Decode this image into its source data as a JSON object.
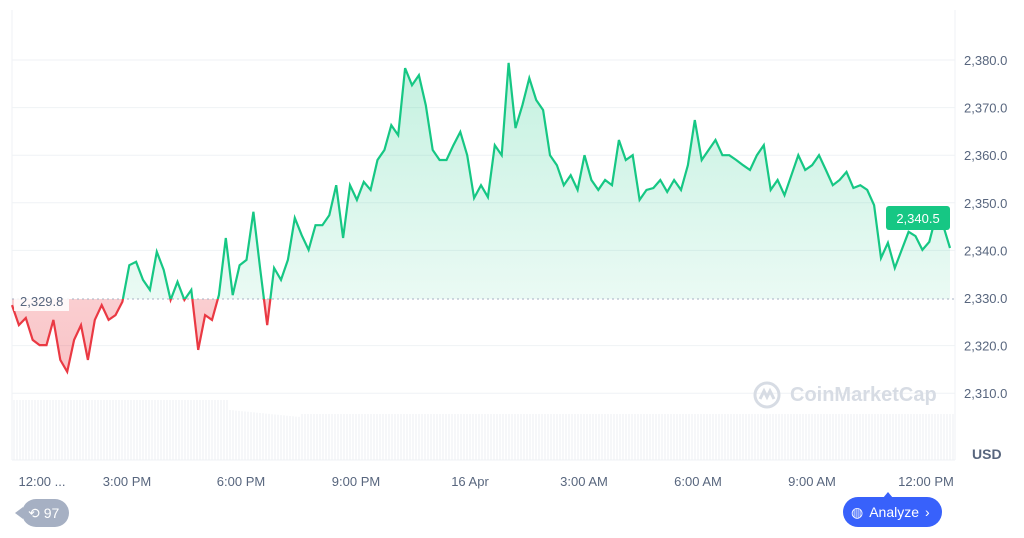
{
  "chart_data": {
    "type": "area",
    "currency_label": "USD",
    "baseline": 2329.8,
    "last_price": "2,340.5",
    "ylim": [
      2300,
      2390
    ],
    "y_ticks": [
      "2,380.0",
      "2,370.0",
      "2,360.0",
      "2,350.0",
      "2,340.0",
      "2,330.0",
      "2,320.0",
      "2,310.0"
    ],
    "y_tick_values": [
      2380,
      2370,
      2360,
      2350,
      2340,
      2330,
      2320,
      2310
    ],
    "x_ticks": [
      "12:00 ...",
      "3:00 PM",
      "6:00 PM",
      "9:00 PM",
      "16 Apr",
      "3:00 AM",
      "6:00 AM",
      "9:00 AM",
      "12:00 PM"
    ],
    "grid": true,
    "colors": {
      "up": "#16c784",
      "down": "#ea3943",
      "accent": "#3861fb"
    },
    "prices": [
      2328.5,
      2324.3,
      2325.8,
      2321.2,
      2320.1,
      2320.1,
      2325.4,
      2317.0,
      2314.5,
      2321.2,
      2324.3,
      2317.0,
      2325.4,
      2328.5,
      2325.4,
      2326.4,
      2329.2,
      2336.9,
      2337.6,
      2333.8,
      2331.7,
      2339.7,
      2335.9,
      2329.6,
      2333.4,
      2329.6,
      2331.7,
      2319.1,
      2326.4,
      2325.4,
      2330.6,
      2342.6,
      2330.6,
      2336.9,
      2338.0,
      2348.1,
      2335.9,
      2324.3,
      2336.3,
      2333.8,
      2338.0,
      2346.8,
      2343.2,
      2340.1,
      2345.3,
      2345.3,
      2347.4,
      2353.7,
      2342.6,
      2353.7,
      2350.6,
      2354.4,
      2352.7,
      2359.0,
      2361.1,
      2366.3,
      2364.2,
      2378.3,
      2374.7,
      2376.8,
      2370.5,
      2361.1,
      2359.0,
      2359.0,
      2362.1,
      2364.9,
      2360.0,
      2351.0,
      2353.7,
      2351.2,
      2362.1,
      2360.0,
      2379.4,
      2365.7,
      2370.5,
      2376.2,
      2371.6,
      2369.5,
      2360.0,
      2357.9,
      2353.7,
      2355.8,
      2352.7,
      2360.0,
      2354.8,
      2352.7,
      2354.8,
      2353.7,
      2363.2,
      2359.0,
      2360.0,
      2350.6,
      2352.7,
      2353.1,
      2354.8,
      2352.3,
      2354.8,
      2352.7,
      2357.9,
      2367.4,
      2359.0,
      2361.1,
      2363.2,
      2360.0,
      2360.0,
      2359.0,
      2357.9,
      2356.9,
      2360.0,
      2362.1,
      2352.7,
      2354.8,
      2351.6,
      2355.8,
      2360.0,
      2356.9,
      2357.9,
      2360.0,
      2356.9,
      2353.7,
      2354.8,
      2356.5,
      2353.1,
      2353.7,
      2352.7,
      2349.5,
      2338.4,
      2341.6,
      2336.3,
      2340.1,
      2343.9,
      2343.0,
      2340.1,
      2341.8,
      2347.4,
      2345.3,
      2340.5
    ]
  },
  "watermark": "CoinMarketCap",
  "history_count": "97",
  "analyze_label": "Analyze"
}
